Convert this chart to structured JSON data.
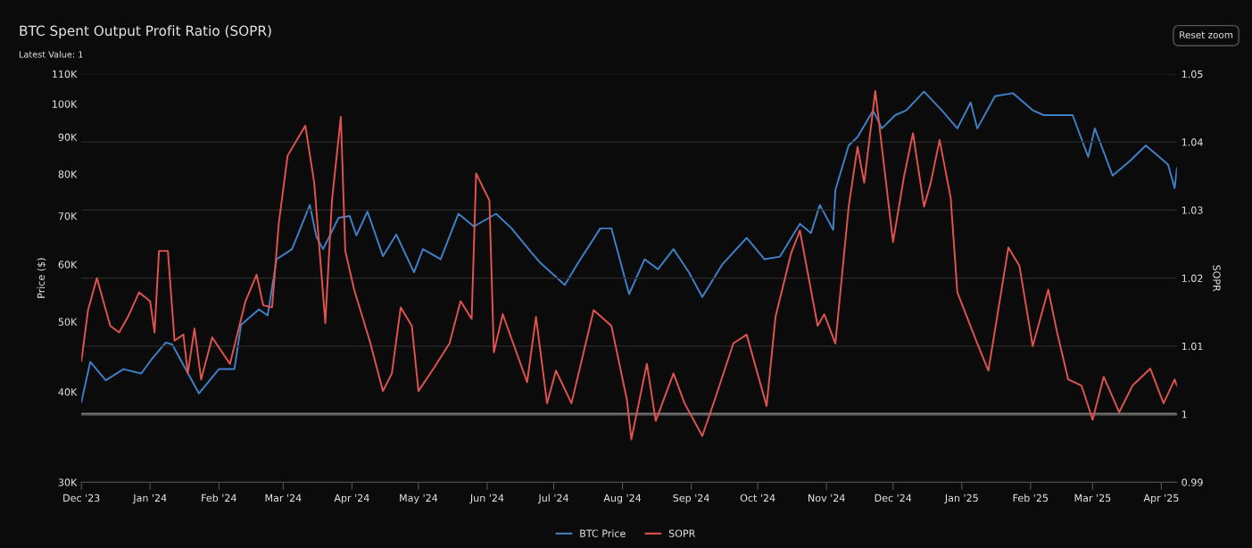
{
  "chart_data": {
    "type": "line",
    "title": "BTC Spent Output Profit Ratio (SOPR)",
    "subtitle": "Latest Value: 1",
    "annotations": [
      "Reset zoom"
    ],
    "ylabel": "Price ($)",
    "y2label": "SOPR",
    "log": "y",
    "grid": true,
    "legend": "bottom",
    "marker": "none",
    "line_style": "solid",
    "xlim": [
      "2023-12-01",
      "2025-04-08"
    ],
    "xticks": [
      {
        "value": "2023-12-01",
        "label": "Dec '23"
      },
      {
        "value": "2024-01-01",
        "label": "Jan '24"
      },
      {
        "value": "2024-02-01",
        "label": "Feb '24"
      },
      {
        "value": "2024-03-01",
        "label": "Mar '24"
      },
      {
        "value": "2024-04-01",
        "label": "Apr '24"
      },
      {
        "value": "2024-05-01",
        "label": "May '24"
      },
      {
        "value": "2024-06-01",
        "label": "Jun '24"
      },
      {
        "value": "2024-07-01",
        "label": "Jul '24"
      },
      {
        "value": "2024-08-01",
        "label": "Aug '24"
      },
      {
        "value": "2024-09-01",
        "label": "Sep '24"
      },
      {
        "value": "2024-10-01",
        "label": "Oct '24"
      },
      {
        "value": "2024-11-01",
        "label": "Nov '24"
      },
      {
        "value": "2024-12-01",
        "label": "Dec '24"
      },
      {
        "value": "2025-01-01",
        "label": "Jan '25"
      },
      {
        "value": "2025-02-01",
        "label": "Feb '25"
      },
      {
        "value": "2025-03-01",
        "label": "Mar '25"
      },
      {
        "value": "2025-04-01",
        "label": "Apr '25"
      }
    ],
    "ylim": [
      30000,
      110000
    ],
    "yticks": [
      {
        "value": 30000,
        "label": "30K"
      },
      {
        "value": 40000,
        "label": "40K"
      },
      {
        "value": 50000,
        "label": "50K"
      },
      {
        "value": 60000,
        "label": "60K"
      },
      {
        "value": 70000,
        "label": "70K"
      },
      {
        "value": 80000,
        "label": "80K"
      },
      {
        "value": 90000,
        "label": "90K"
      },
      {
        "value": 100000,
        "label": "100K"
      },
      {
        "value": 110000,
        "label": "110K"
      }
    ],
    "y2lim": [
      0.99,
      1.05
    ],
    "y2ticks": [
      0.99,
      1,
      1.01,
      1.02,
      1.03,
      1.04,
      1.05
    ],
    "ref_lines": [
      {
        "axis": "y2",
        "value": 1,
        "color": "#cfcfcf"
      }
    ],
    "series": [
      {
        "name": "BTC Price",
        "color": "#3f80c8",
        "axis": "y",
        "x": [
          "2023-12-01",
          "2023-12-05",
          "2023-12-12",
          "2023-12-20",
          "2023-12-28",
          "2024-01-02",
          "2024-01-08",
          "2024-01-11",
          "2024-01-17",
          "2024-01-23",
          "2024-02-01",
          "2024-02-08",
          "2024-02-11",
          "2024-02-19",
          "2024-02-23",
          "2024-02-27",
          "2024-03-05",
          "2024-03-13",
          "2024-03-16",
          "2024-03-19",
          "2024-03-26",
          "2024-03-31",
          "2024-04-03",
          "2024-04-08",
          "2024-04-15",
          "2024-04-21",
          "2024-04-29",
          "2024-05-03",
          "2024-05-11",
          "2024-05-19",
          "2024-05-26",
          "2024-06-05",
          "2024-06-12",
          "2024-06-21",
          "2024-06-25",
          "2024-07-06",
          "2024-07-12",
          "2024-07-22",
          "2024-07-27",
          "2024-08-04",
          "2024-08-11",
          "2024-08-17",
          "2024-08-24",
          "2024-08-31",
          "2024-09-06",
          "2024-09-15",
          "2024-09-26",
          "2024-10-04",
          "2024-10-11",
          "2024-10-20",
          "2024-10-25",
          "2024-10-29",
          "2024-11-04",
          "2024-11-05",
          "2024-11-11",
          "2024-11-15",
          "2024-11-22",
          "2024-11-26",
          "2024-12-02",
          "2024-12-07",
          "2024-12-15",
          "2024-12-23",
          "2024-12-30",
          "2025-01-05",
          "2025-01-08",
          "2025-01-16",
          "2025-01-24",
          "2025-02-02",
          "2025-02-07",
          "2025-02-20",
          "2025-02-27",
          "2025-03-02",
          "2025-03-10",
          "2025-03-18",
          "2025-03-25",
          "2025-04-04",
          "2025-04-07",
          "2025-04-08"
        ],
        "values": [
          38700,
          44000,
          41500,
          43000,
          42400,
          44500,
          46800,
          46500,
          43000,
          39800,
          43000,
          43000,
          49500,
          52000,
          51000,
          61000,
          63000,
          72500,
          65500,
          63000,
          69600,
          70000,
          65800,
          71000,
          61600,
          66000,
          58500,
          63000,
          61000,
          70500,
          67700,
          70500,
          67300,
          62300,
          60300,
          56200,
          60300,
          67300,
          67300,
          54600,
          61000,
          59100,
          63000,
          58500,
          54100,
          60000,
          65300,
          61000,
          61500,
          68300,
          66300,
          72500,
          67000,
          76000,
          87600,
          90000,
          97900,
          92500,
          96500,
          98000,
          104000,
          98000,
          92500,
          100500,
          92500,
          102500,
          103500,
          98000,
          96500,
          96500,
          84500,
          92500,
          79600,
          83500,
          87600,
          82500,
          76500,
          81500
        ]
      },
      {
        "name": "SOPR",
        "color": "#e0534f",
        "axis": "y2",
        "x": [
          "2023-12-01",
          "2023-12-04",
          "2023-12-08",
          "2023-12-14",
          "2023-12-18",
          "2023-12-22",
          "2023-12-27",
          "2024-01-01",
          "2024-01-03",
          "2024-01-05",
          "2024-01-09",
          "2024-01-12",
          "2024-01-16",
          "2024-01-18",
          "2024-01-21",
          "2024-01-24",
          "2024-01-29",
          "2024-02-06",
          "2024-02-13",
          "2024-02-18",
          "2024-02-21",
          "2024-02-25",
          "2024-02-28",
          "2024-03-03",
          "2024-03-11",
          "2024-03-15",
          "2024-03-20",
          "2024-03-23",
          "2024-03-27",
          "2024-03-29",
          "2024-04-02",
          "2024-04-09",
          "2024-04-15",
          "2024-04-19",
          "2024-04-23",
          "2024-04-28",
          "2024-05-01",
          "2024-05-08",
          "2024-05-15",
          "2024-05-20",
          "2024-05-25",
          "2024-05-27",
          "2024-06-02",
          "2024-06-04",
          "2024-06-08",
          "2024-06-19",
          "2024-06-23",
          "2024-06-28",
          "2024-07-02",
          "2024-07-09",
          "2024-07-19",
          "2024-07-27",
          "2024-08-03",
          "2024-08-05",
          "2024-08-12",
          "2024-08-16",
          "2024-08-24",
          "2024-08-29",
          "2024-09-06",
          "2024-09-12",
          "2024-09-20",
          "2024-09-26",
          "2024-10-05",
          "2024-10-09",
          "2024-10-16",
          "2024-10-20",
          "2024-10-28",
          "2024-10-31",
          "2024-11-05",
          "2024-11-11",
          "2024-11-15",
          "2024-11-18",
          "2024-11-23",
          "2024-12-01",
          "2024-12-06",
          "2024-12-10",
          "2024-12-15",
          "2024-12-18",
          "2024-12-22",
          "2024-12-27",
          "2024-12-30",
          "2025-01-08",
          "2025-01-13",
          "2025-01-22",
          "2025-01-27",
          "2025-02-02",
          "2025-02-09",
          "2025-02-13",
          "2025-02-18",
          "2025-02-24",
          "2025-03-01",
          "2025-03-06",
          "2025-03-13",
          "2025-03-19",
          "2025-03-27",
          "2025-04-02",
          "2025-04-07",
          "2025-04-08"
        ],
        "values": [
          1.0078,
          1.0153,
          1.02,
          1.013,
          1.012,
          1.0143,
          1.0179,
          1.0166,
          1.012,
          1.024,
          1.024,
          1.0108,
          1.0117,
          1.006,
          1.0126,
          1.0051,
          1.0113,
          1.0074,
          1.0166,
          1.0205,
          1.016,
          1.0157,
          1.028,
          1.038,
          1.0424,
          1.034,
          1.0134,
          1.0314,
          1.0437,
          1.024,
          1.0183,
          1.0108,
          1.0034,
          1.006,
          1.0157,
          1.013,
          1.0034,
          1.0068,
          1.0104,
          1.0166,
          1.014,
          1.0354,
          1.0314,
          1.0091,
          1.0147,
          1.0047,
          1.0143,
          1.0016,
          1.0064,
          1.0016,
          1.0153,
          1.013,
          1.0021,
          0.9963,
          1.0074,
          0.999,
          1.006,
          1.0016,
          0.9968,
          1.0025,
          1.0104,
          1.0117,
          1.0012,
          1.0143,
          1.0236,
          1.027,
          1.013,
          1.0147,
          1.0104,
          1.0305,
          1.0393,
          1.034,
          1.0475,
          1.0253,
          1.035,
          1.0413,
          1.0305,
          1.034,
          1.0403,
          1.0318,
          1.0179,
          1.0104,
          1.0064,
          1.0245,
          1.0218,
          1.01,
          1.0183,
          1.012,
          1.0051,
          1.0042,
          0.9992,
          1.0055,
          1.0003,
          1.0042,
          1.0067,
          1.0016,
          1.0051,
          1.0042
        ]
      }
    ]
  }
}
